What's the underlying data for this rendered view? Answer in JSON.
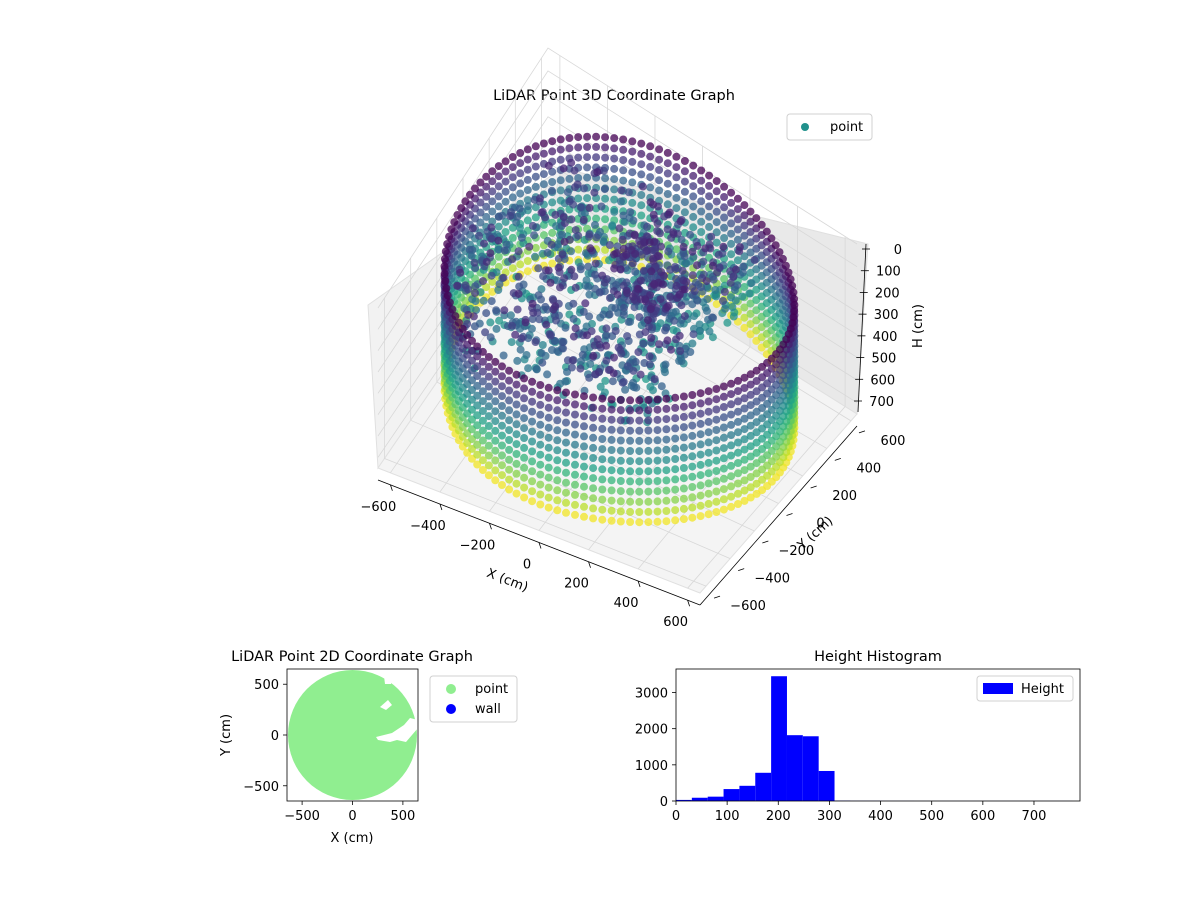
{
  "chart_data": [
    {
      "type": "scatter3d",
      "title": "LiDAR Point 3D Coordinate Graph",
      "xlabel": "X (cm)",
      "ylabel": "Y (cm)",
      "zlabel": "H (cm)",
      "xlim": [
        -650,
        650
      ],
      "ylim": [
        -650,
        650
      ],
      "zlim": [
        0,
        750
      ],
      "z_inverted": true,
      "x_ticks": [
        "−600",
        "−400",
        "−200",
        "0",
        "200",
        "400",
        "600"
      ],
      "y_ticks": [
        "−600",
        "−400",
        "−200",
        "0",
        "200",
        "400",
        "600"
      ],
      "z_ticks": [
        "0",
        "100",
        "200",
        "300",
        "400",
        "500",
        "600",
        "700"
      ],
      "legend": {
        "entries": [
          {
            "label": "point",
            "color": "#21918c"
          }
        ],
        "position": "upper-right"
      },
      "colormap": "viridis",
      "wall": {
        "radius": 640,
        "h_min": 100,
        "h_max": 640,
        "angle_step_deg": 3
      },
      "floor_blob": {
        "h_range": [
          150,
          400
        ],
        "x_range": [
          -600,
          300
        ],
        "y_range": [
          -400,
          500
        ]
      },
      "obstacle": {
        "x_range": [
          -100,
          200
        ],
        "y_range": [
          0,
          300
        ],
        "h_range": [
          150,
          300
        ]
      },
      "grid": true
    },
    {
      "type": "scatter",
      "title": "LiDAR Point 2D Coordinate Graph",
      "xlabel": "X (cm)",
      "ylabel": "Y (cm)",
      "xlim": [
        -650,
        650
      ],
      "ylim": [
        -650,
        650
      ],
      "x_ticks": [
        "−500",
        "0",
        "500"
      ],
      "y_ticks": [
        "−500",
        "0",
        "500"
      ],
      "series": [
        {
          "name": "point",
          "color": "#90ee90",
          "shape": "disc",
          "radius": 640,
          "center": [
            0,
            0
          ]
        },
        {
          "name": "wall",
          "color": "#0000ff",
          "points": []
        }
      ],
      "legend": {
        "position": "outside-right"
      }
    },
    {
      "type": "bar",
      "title": "Height Histogram",
      "xlabel": "",
      "ylabel": "",
      "xlim": [
        0,
        790
      ],
      "ylim": [
        0,
        3650
      ],
      "x_ticks": [
        "0",
        "100",
        "200",
        "300",
        "400",
        "500",
        "600",
        "700"
      ],
      "y_ticks": [
        "0",
        "1000",
        "2000",
        "3000"
      ],
      "bin_width": 31,
      "bin_starts": [
        0,
        31,
        62,
        93,
        124,
        155,
        186,
        217,
        248,
        279,
        310,
        341,
        372,
        403,
        434,
        465,
        496,
        527,
        558,
        589,
        620,
        651,
        682,
        713,
        744
      ],
      "values": [
        30,
        90,
        120,
        330,
        420,
        780,
        3450,
        1820,
        1790,
        830,
        10,
        5,
        5,
        3,
        3,
        2,
        2,
        2,
        2,
        2,
        2,
        2,
        2,
        2,
        2
      ],
      "color": "#0000ff",
      "legend": {
        "entries": [
          {
            "label": "Height",
            "color": "#0000ff"
          }
        ],
        "position": "upper-right"
      }
    }
  ]
}
